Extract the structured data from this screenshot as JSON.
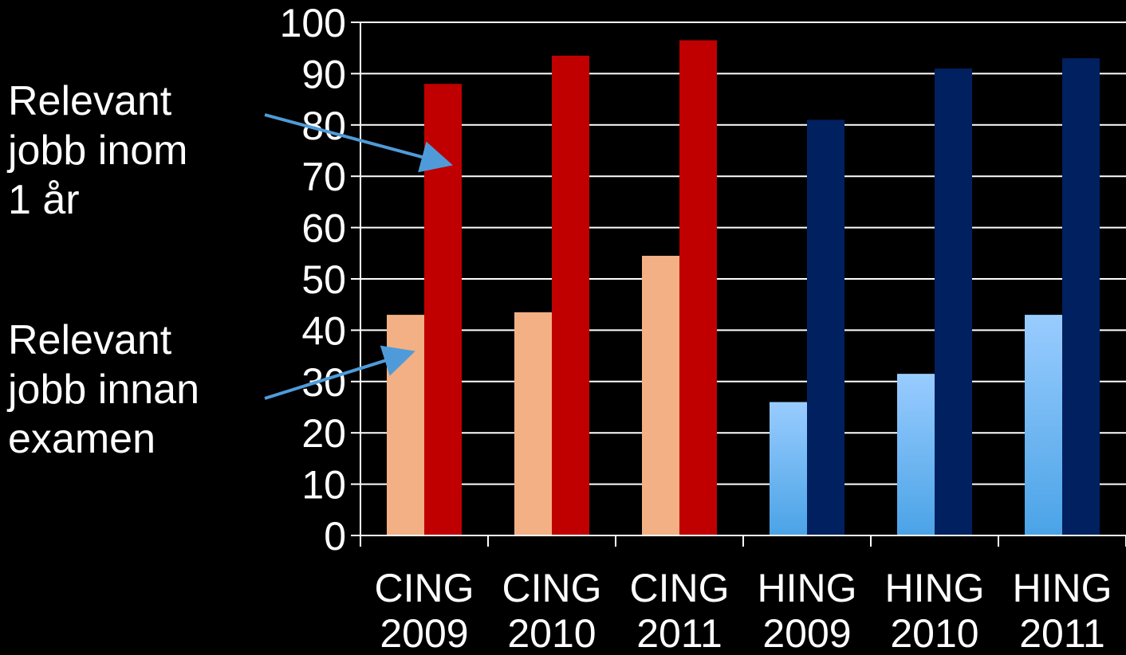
{
  "chart_data": {
    "type": "bar",
    "categories": [
      [
        "CING",
        "2009"
      ],
      [
        "CING",
        "2010"
      ],
      [
        "CING",
        "2011"
      ],
      [
        "HING",
        "2009"
      ],
      [
        "HING",
        "2010"
      ],
      [
        "HING",
        "2011"
      ]
    ],
    "series": [
      {
        "name": "Relevant jobb innan examen",
        "values": [
          43,
          43.5,
          54.5,
          26,
          31.5,
          43
        ]
      },
      {
        "name": "Relevant jobb inom 1 år",
        "values": [
          88,
          93.5,
          96.5,
          81,
          91,
          93
        ]
      }
    ],
    "colors": {
      "cing_before": "#F2B084",
      "cing_within": "#C00000",
      "hing_before_top": "#99CCFF",
      "hing_before_bottom": "#4AA3E6",
      "hing_within": "#002060",
      "gridline": "#ffffff",
      "arrow": "#4F9BD9"
    },
    "ylim": [
      0,
      100
    ],
    "yticks": [
      0,
      10,
      20,
      30,
      40,
      50,
      60,
      70,
      80,
      90,
      100
    ],
    "grid": true,
    "title": "",
    "xlabel": "",
    "ylabel": "",
    "annotations": [
      {
        "lines": [
          "Relevant",
          "jobb inom",
          "1 år"
        ],
        "points_to_series": 1,
        "points_to_category": 0
      },
      {
        "lines": [
          "Relevant",
          "jobb innan",
          "examen"
        ],
        "points_to_series": 0,
        "points_to_category": 0
      }
    ]
  }
}
